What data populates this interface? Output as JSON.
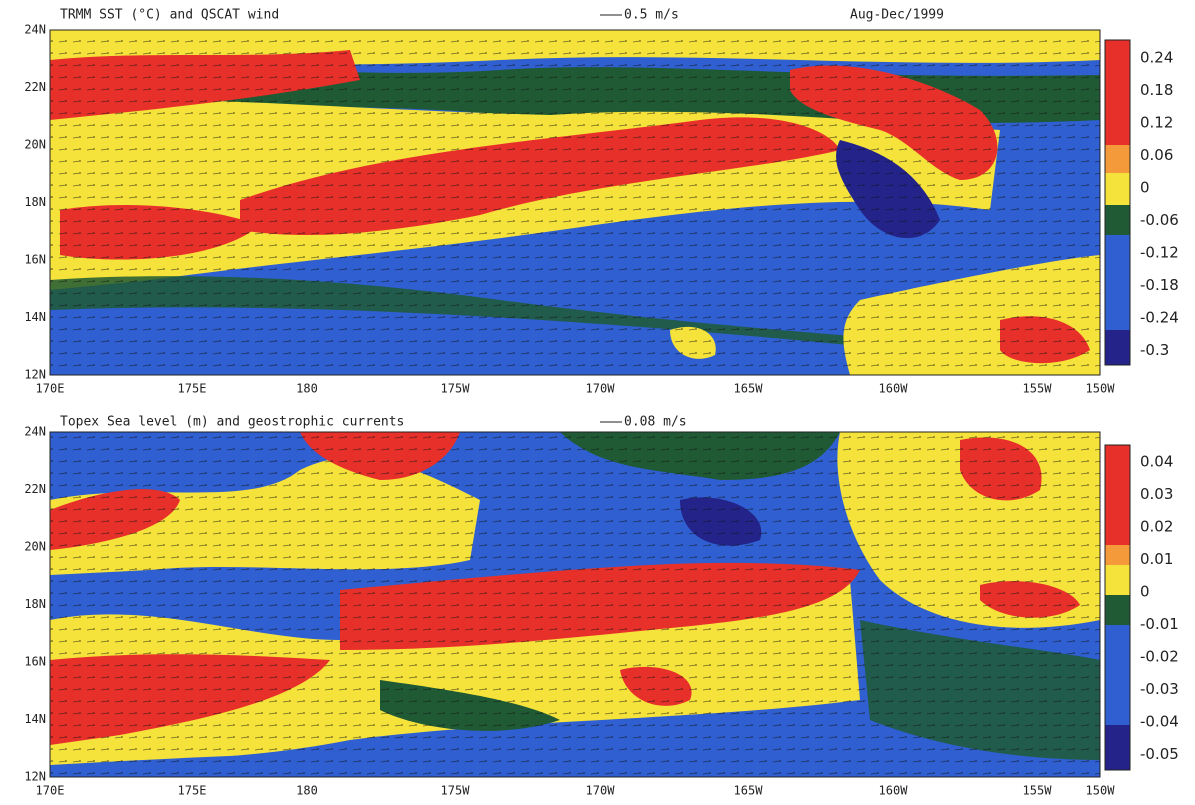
{
  "panels": [
    {
      "title": "TRMM SST (°C) and QSCAT wind",
      "scale_label": "0.5 m/s",
      "period": "Aug-Dec/1999",
      "x_labels": [
        "170E",
        "175E",
        "180",
        "175W",
        "170W",
        "165W",
        "160W",
        "155W",
        "150W"
      ],
      "y_labels": [
        "24N",
        "22N",
        "20N",
        "18N",
        "16N",
        "14N",
        "12N"
      ],
      "colorbar_labels": [
        "0.24",
        "0.18",
        "0.12",
        "0.06",
        "0",
        "-0.06",
        "-0.12",
        "-0.18",
        "-0.24",
        "-0.3"
      ]
    },
    {
      "title": "Topex Sea level (m) and geostrophic currents",
      "scale_label": "0.08 m/s",
      "x_labels": [
        "170E",
        "175E",
        "180",
        "175W",
        "170W",
        "165W",
        "160W",
        "155W",
        "150W"
      ],
      "y_labels": [
        "24N",
        "22N",
        "20N",
        "18N",
        "16N",
        "14N",
        "12N"
      ],
      "colorbar_labels": [
        "0.04",
        "0.03",
        "0.02",
        "0.01",
        "0",
        "-0.01",
        "-0.02",
        "-0.03",
        "-0.04",
        "-0.05"
      ]
    }
  ]
}
